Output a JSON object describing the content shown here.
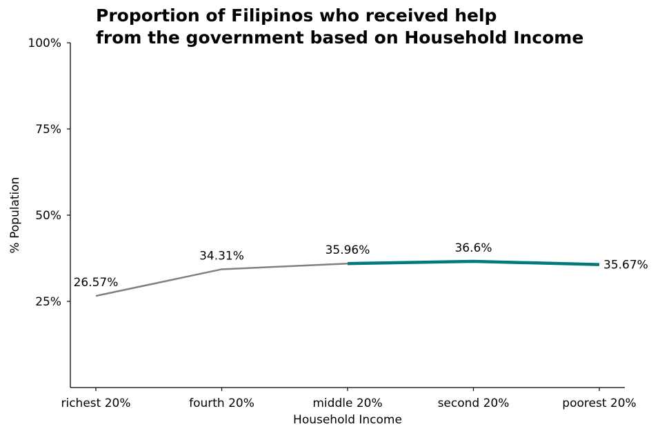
{
  "chart_data": {
    "type": "line",
    "title_lines": [
      "Proportion of Filipinos who received help",
      "from the government based on Household Income"
    ],
    "xlabel": "Household Income",
    "ylabel": "% Population",
    "categories": [
      "richest 20%",
      "fourth 20%",
      "middle 20%",
      "second 20%",
      "poorest 20%"
    ],
    "values": [
      26.57,
      34.31,
      35.96,
      36.6,
      35.67
    ],
    "data_labels": [
      "26.57%",
      "34.31%",
      "35.96%",
      "36.6%",
      "35.67%"
    ],
    "ylim": [
      0,
      100
    ],
    "yticks": [
      25,
      50,
      75,
      100
    ],
    "ytick_labels": [
      "25%",
      "50%",
      "75%",
      "100%"
    ],
    "highlight_from_index": 2,
    "colors": {
      "base": "#808080",
      "highlight": "#007a7a"
    },
    "grid": false
  }
}
